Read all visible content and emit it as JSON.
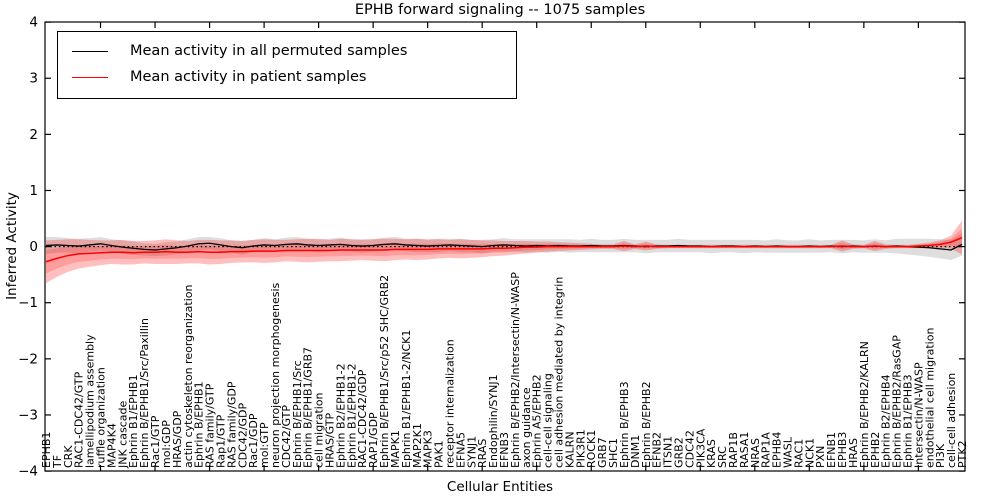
{
  "chart_data": {
    "type": "line",
    "title": "EPHB forward signaling -- 1075 samples",
    "xlabel": "Cellular Entities",
    "ylabel": "Inferred Activity",
    "ylim": [
      -4,
      4
    ],
    "yticks": [
      4,
      3,
      2,
      1,
      0,
      -1,
      -2,
      -3,
      -4
    ],
    "grid": false,
    "legend_position": "upper left",
    "categories": [
      "EPHB1",
      "TF",
      "CRK",
      "RAC1-CDC42/GTP",
      "lamellipodium assembly",
      "ruffle organization",
      "MAP4K4",
      "JNK cascade",
      "Ephrin B1/EPHB1",
      "Ephrin B/EPHB1/Src/Paxillin",
      "Rac1/GTP",
      "mol:GDP",
      "HRAS/GDP",
      "actin cytoskeleton reorganization",
      "Ephrin B/EPHB1",
      "RAS family/GTP",
      "Rap1/GTP",
      "RAS family/GDP",
      "CDC42/GDP",
      "Rac1/GDP",
      "mol:GTP",
      "neuron projection morphogenesis",
      "CDC42/GTP",
      "Ephrin B/EPHB1/Src",
      "Ephrin B/EPHB1/GRB7",
      "cell migration",
      "HRAS/GTP",
      "Ephrin B2/EPHB1-2",
      "Ephrin B1/EPHB1-2",
      "RAC1-CDC42/GDP",
      "RAP1/GDP",
      "Ephrin B/EPHB1/Src/p52 SHC/GRB2",
      "MAPK1",
      "Ephrin B1/EPHB1-2/NCK1",
      "MAP2K1",
      "MAPK3",
      "PAK1",
      "receptor internalization",
      "EFNA5",
      "SYNJ1",
      "RRAS",
      "Endophilin/SYNJ1",
      "EFNB3",
      "Ephrin B/EPHB2/Intersectin/N-WASP",
      "axon guidance",
      "Ephrin A5/EPHB2",
      "cell-cell signaling",
      "cell adhesion mediated by integrin",
      "KALRN",
      "PIK3R1",
      "ROCK1",
      "GRB7",
      "SHC1",
      "Ephrin B/EPHB3",
      "DNM1",
      "Ephrin B/EPHB2",
      "EFNB2",
      "ITSN1",
      "GRB2",
      "CDC42",
      "PIK3CA",
      "KRAS",
      "SRC",
      "RAP1B",
      "RASA1",
      "NRAS",
      "RAP1A",
      "EPHB4",
      "WASL",
      "RAC1",
      "NCK1",
      "PXN",
      "EFNB1",
      "EPHB3",
      "HRAS",
      "Ephrin B/EPHB2/KALRN",
      "EPHB2",
      "Ephrin B2/EPHB4",
      "Ephrin B/EPHB2/RasGAP",
      "Ephrin B1/EPHB3",
      "Intersectin/N-WASP",
      "endothelial cell migration",
      "PI3K",
      "cell-cell adhesion",
      "PTK2"
    ],
    "series": [
      {
        "name": "Mean activity in all permuted samples",
        "color": "#000000",
        "values": [
          0.02,
          0.03,
          0.02,
          0.01,
          0.03,
          0.05,
          0.02,
          -0.01,
          -0.03,
          -0.05,
          -0.06,
          -0.04,
          -0.02,
          0.01,
          0.05,
          0.06,
          0.03,
          0.0,
          -0.02,
          0.01,
          0.03,
          0.02,
          0.04,
          0.05,
          0.03,
          0.02,
          0.03,
          0.04,
          0.02,
          0.01,
          0.02,
          0.04,
          0.05,
          0.03,
          0.02,
          0.01,
          0.02,
          0.03,
          0.02,
          0.01,
          0.0,
          0.02,
          0.03,
          0.02,
          0.01,
          0.02,
          0.01,
          0.02,
          0.01,
          0.01,
          0.02,
          0.01,
          0.01,
          0.02,
          0.01,
          0.0,
          0.01,
          0.01,
          0.02,
          0.01,
          0.01,
          0.0,
          0.01,
          0.01,
          0.0,
          0.01,
          0.0,
          0.01,
          0.0,
          0.0,
          0.01,
          0.0,
          0.01,
          0.0,
          0.01,
          0.0,
          0.01,
          0.0,
          0.01,
          0.0,
          -0.01,
          -0.02,
          -0.04,
          -0.06,
          0.04
        ],
        "band_halfwidth": [
          0.15,
          0.14,
          0.13,
          0.13,
          0.12,
          0.12,
          0.11,
          0.12,
          0.12,
          0.11,
          0.11,
          0.12,
          0.11,
          0.12,
          0.12,
          0.11,
          0.12,
          0.11,
          0.12,
          0.11,
          0.12,
          0.11,
          0.12,
          0.12,
          0.11,
          0.12,
          0.11,
          0.12,
          0.11,
          0.12,
          0.11,
          0.12,
          0.12,
          0.11,
          0.12,
          0.11,
          0.12,
          0.11,
          0.12,
          0.11,
          0.12,
          0.11,
          0.12,
          0.11,
          0.12,
          0.11,
          0.12,
          0.11,
          0.12,
          0.11,
          0.12,
          0.11,
          0.11,
          0.12,
          0.11,
          0.12,
          0.11,
          0.11,
          0.12,
          0.11,
          0.11,
          0.12,
          0.11,
          0.11,
          0.12,
          0.11,
          0.11,
          0.12,
          0.11,
          0.11,
          0.12,
          0.11,
          0.11,
          0.12,
          0.11,
          0.11,
          0.12,
          0.11,
          0.13,
          0.14,
          0.15,
          0.16,
          0.17,
          0.18,
          0.2
        ]
      },
      {
        "name": "Mean activity in patient samples",
        "color": "#ff0000",
        "values": [
          -0.27,
          -0.21,
          -0.16,
          -0.13,
          -0.12,
          -0.11,
          -0.1,
          -0.1,
          -0.11,
          -0.1,
          -0.1,
          -0.09,
          -0.1,
          -0.1,
          -0.09,
          -0.1,
          -0.1,
          -0.09,
          -0.09,
          -0.08,
          -0.08,
          -0.08,
          -0.07,
          -0.07,
          -0.07,
          -0.07,
          -0.07,
          -0.06,
          -0.06,
          -0.06,
          -0.06,
          -0.06,
          -0.05,
          -0.05,
          -0.05,
          -0.05,
          -0.04,
          -0.04,
          -0.04,
          -0.04,
          -0.04,
          -0.03,
          -0.03,
          -0.02,
          -0.01,
          -0.01,
          0.0,
          0.0,
          0.0,
          0.0,
          0.0,
          0.0,
          0.0,
          0.01,
          0.0,
          0.01,
          0.0,
          0.0,
          0.0,
          0.0,
          0.0,
          0.0,
          0.0,
          0.0,
          0.0,
          0.0,
          0.0,
          0.0,
          0.0,
          0.0,
          0.0,
          0.0,
          0.0,
          0.01,
          0.0,
          0.0,
          0.01,
          0.0,
          0.0,
          0.0,
          0.01,
          0.02,
          0.04,
          0.08,
          0.16
        ],
        "band_halfwidth": [
          0.38,
          0.33,
          0.29,
          0.26,
          0.24,
          0.22,
          0.21,
          0.22,
          0.21,
          0.2,
          0.21,
          0.22,
          0.21,
          0.2,
          0.21,
          0.22,
          0.21,
          0.2,
          0.19,
          0.2,
          0.21,
          0.2,
          0.19,
          0.2,
          0.21,
          0.2,
          0.19,
          0.2,
          0.19,
          0.18,
          0.19,
          0.2,
          0.19,
          0.18,
          0.19,
          0.18,
          0.17,
          0.16,
          0.17,
          0.16,
          0.15,
          0.14,
          0.13,
          0.12,
          0.11,
          0.1,
          0.09,
          0.08,
          0.07,
          0.06,
          0.05,
          0.04,
          0.04,
          0.09,
          0.04,
          0.08,
          0.04,
          0.03,
          0.03,
          0.03,
          0.03,
          0.03,
          0.03,
          0.03,
          0.03,
          0.03,
          0.03,
          0.03,
          0.03,
          0.03,
          0.03,
          0.03,
          0.03,
          0.1,
          0.04,
          0.03,
          0.09,
          0.04,
          0.03,
          0.03,
          0.04,
          0.05,
          0.07,
          0.12,
          0.3
        ]
      },
      {
        "name": "zero-baseline",
        "color": "#000000",
        "style": "dotted",
        "value": 0
      }
    ]
  }
}
